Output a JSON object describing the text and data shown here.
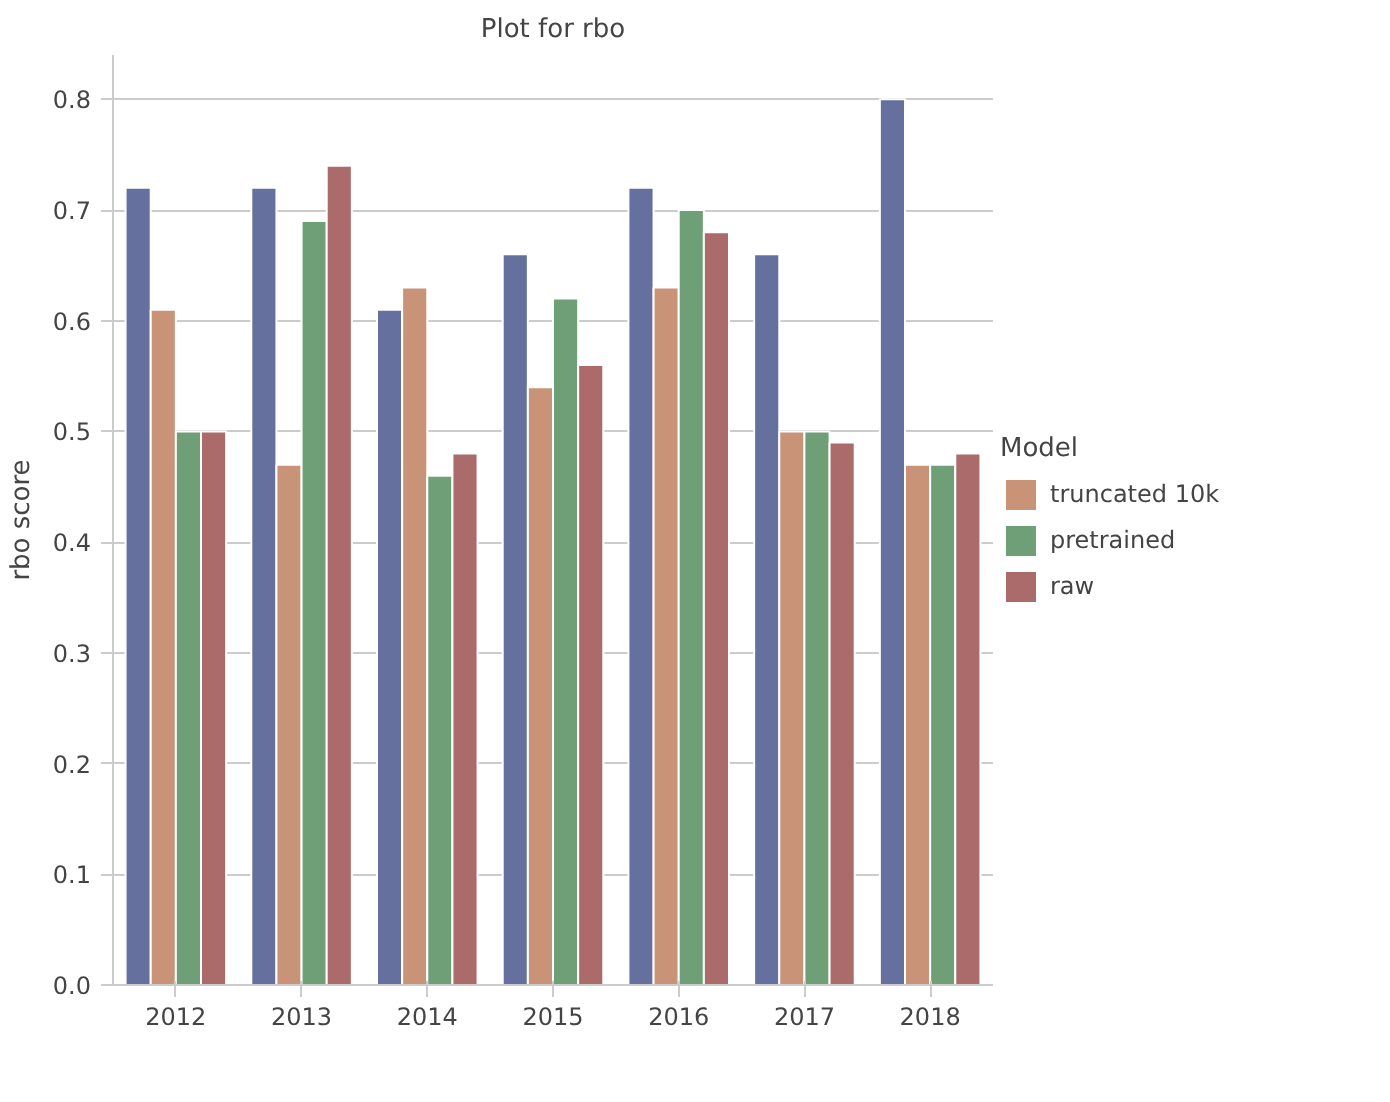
{
  "chart_data": {
    "type": "bar",
    "title": "Plot for rbo",
    "ylabel": "rbo score",
    "legend_title": "Model",
    "categories": [
      "2012",
      "2013",
      "2014",
      "2015",
      "2016",
      "2017",
      "2018"
    ],
    "series": [
      {
        "color": "#66709f",
        "values": [
          0.72,
          0.72,
          0.61,
          0.66,
          0.72,
          0.66,
          0.8
        ]
      },
      {
        "name": "truncated 10k",
        "color": "#c99377",
        "values": [
          0.61,
          0.47,
          0.63,
          0.54,
          0.63,
          0.5,
          0.47
        ]
      },
      {
        "name": "pretrained",
        "color": "#6e9f76",
        "values": [
          0.5,
          0.69,
          0.46,
          0.62,
          0.7,
          0.5,
          0.47
        ]
      },
      {
        "name": "raw",
        "color": "#ab6b6b",
        "values": [
          0.5,
          0.74,
          0.48,
          0.56,
          0.68,
          0.49,
          0.48
        ]
      }
    ],
    "ylim": [
      0,
      0.84
    ],
    "yticks": [
      {
        "value": 0,
        "label": "0.0"
      },
      0.1,
      0.2,
      0.3,
      0.4,
      0.5,
      0.6,
      0.7,
      0.8
    ],
    "grid": "y",
    "legend": "right"
  }
}
